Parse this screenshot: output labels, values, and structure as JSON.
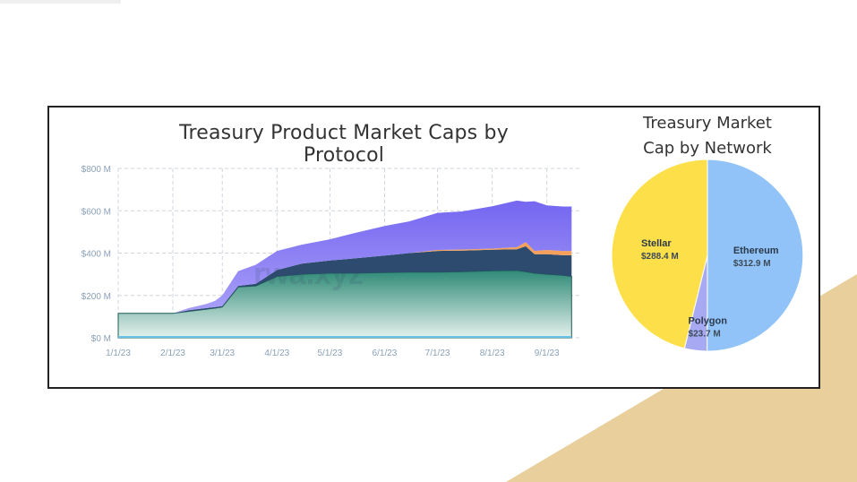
{
  "colors": {
    "ethereum": "#91c3f8",
    "stellar": "#fddf4a",
    "polygon": "#a7aaf2",
    "area_green": "#2f8a77",
    "area_navy": "#2c4b6f",
    "area_orange": "#f5a05a",
    "area_purple": "#8b7ef5",
    "area_teal_line": "#1d5c57",
    "axis_text": "#8aa0b8",
    "grid": "#cfd5dc",
    "decor": "#e8cf9b"
  },
  "watermark": "rwa.xyz",
  "chart_data": [
    {
      "type": "area",
      "title": "Treasury Product Market Caps by Protocol",
      "xlabel": "",
      "ylabel": "",
      "x_ticks": [
        "1/1/23",
        "2/1/23",
        "3/1/23",
        "4/1/23",
        "5/1/23",
        "6/1/23",
        "7/1/23",
        "8/1/23",
        "9/1/23"
      ],
      "y_ticks": [
        "$0 M",
        "$200 M",
        "$400 M",
        "$600 M",
        "$800 M"
      ],
      "ylim": [
        0,
        800
      ],
      "grid": true,
      "stacked": true,
      "x": [
        "1/1/23",
        "1/20/23",
        "2/1/23",
        "2/10/23",
        "2/20/23",
        "2/25/23",
        "3/1/23",
        "3/10/23",
        "3/20/23",
        "4/1/23",
        "4/15/23",
        "5/1/23",
        "5/15/23",
        "6/1/23",
        "6/15/23",
        "7/1/23",
        "7/15/23",
        "8/1/23",
        "8/15/23",
        "8/20/23",
        "8/25/23",
        "9/1/23",
        "9/10/23",
        "9/15/23"
      ],
      "series": [
        {
          "values": [
            115,
            115,
            115,
            125,
            135,
            140,
            145,
            240,
            245,
            290,
            300,
            305,
            305,
            308,
            310,
            310,
            312,
            316,
            318,
            312,
            305,
            300,
            295,
            290
          ]
        },
        {
          "values": [
            0,
            0,
            0,
            5,
            5,
            5,
            5,
            5,
            10,
            30,
            50,
            60,
            70,
            80,
            90,
            100,
            100,
            100,
            100,
            120,
            90,
            95,
            95,
            100
          ]
        },
        {
          "values": [
            0,
            0,
            0,
            0,
            0,
            0,
            0,
            0,
            0,
            0,
            0,
            0,
            0,
            0,
            0,
            5,
            5,
            5,
            10,
            20,
            15,
            20,
            20,
            20
          ]
        },
        {
          "values": [
            0,
            0,
            0,
            10,
            20,
            30,
            50,
            70,
            90,
            90,
            90,
            100,
            120,
            140,
            150,
            175,
            180,
            200,
            220,
            190,
            235,
            210,
            210,
            210
          ]
        }
      ]
    },
    {
      "type": "pie",
      "title": "Treasury Market Cap by Network",
      "slices": [
        {
          "name": "Ethereum",
          "value": 312.9,
          "label": "$312.9 M"
        },
        {
          "name": "Polygon",
          "value": 23.7,
          "label": "$23.7 M"
        },
        {
          "name": "Stellar",
          "value": 288.4,
          "label": "$288.4 M"
        }
      ]
    }
  ]
}
